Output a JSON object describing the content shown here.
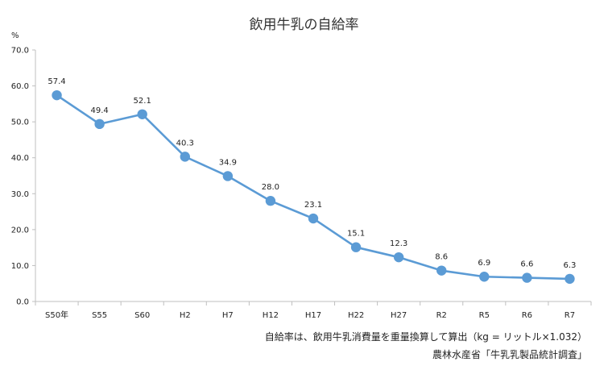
{
  "chart_data": {
    "type": "line",
    "title": "飲用牛乳の自給率",
    "unit": "%",
    "categories": [
      "S50年",
      "S55",
      "S60",
      "H2",
      "H7",
      "H12",
      "H17",
      "H22",
      "H27",
      "R2",
      "R5",
      "R6",
      "R7"
    ],
    "series": [
      {
        "values": [
          57.4,
          49.4,
          52.1,
          40.3,
          34.9,
          28.0,
          23.1,
          15.1,
          12.3,
          8.6,
          6.9,
          6.6,
          6.3
        ]
      }
    ],
    "y_ticks": [
      "70.0",
      "60.0",
      "50.0",
      "40.0",
      "30.0",
      "20.0",
      "10.0",
      "0.0"
    ],
    "ylim": [
      0,
      70
    ],
    "grid": false,
    "legend": "none",
    "line_color": "#5b9bd5",
    "notes": [
      "自給率は、飲用牛乳消費量を重量換算して算出（kg = リットル×1.032）",
      "農林水産省「牛乳乳製品統計調査」"
    ]
  }
}
